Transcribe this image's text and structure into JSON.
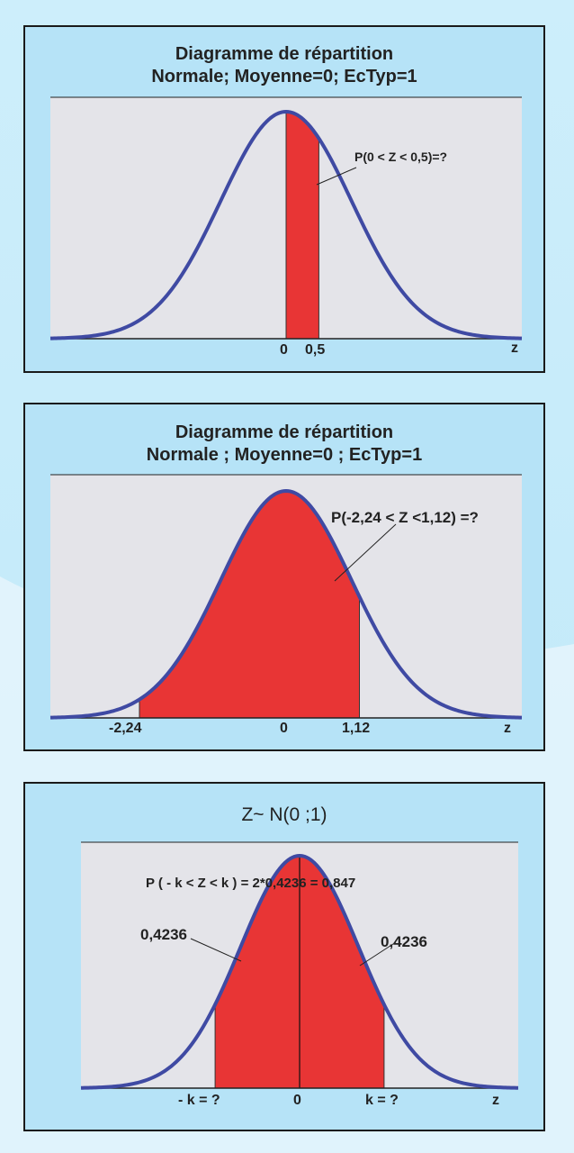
{
  "colors": {
    "panel_bg": "#b6e3f7",
    "plot_bg": "#e4e4e9",
    "curve": "#3f4aa3",
    "fill": "#e83535"
  },
  "charts": [
    {
      "title_line1": "Diagramme de répartition",
      "title_line2": "Normale; Moyenne=0; EcTyp=1",
      "annotation": "P(0 < Z < 0,5)=?",
      "x_labels": [
        "0",
        "0,5"
      ],
      "axis_label": "z"
    },
    {
      "title_line1": "Diagramme de répartition",
      "title_line2": "Normale ; Moyenne=0 ; EcTyp=1",
      "annotation": "P(-2,24 < Z <1,12) =?",
      "x_labels": [
        "-2,24",
        "0",
        "1,12"
      ],
      "axis_label": "z"
    },
    {
      "title_line1": "Z~ N(0 ;1)",
      "annotation": "P ( - k < Z < k ) = 2*0,4236 = 0,847",
      "left_area": "0,4236",
      "right_area": "0,4236",
      "x_labels": [
        "- k = ?",
        "0",
        "k = ?"
      ],
      "axis_label": "z"
    }
  ],
  "chart_data": [
    {
      "type": "area",
      "distribution": "normal",
      "mean": 0,
      "sd": 1,
      "xlim": [
        -3.6,
        3.6
      ],
      "shaded_interval": [
        0,
        0.5
      ]
    },
    {
      "type": "area",
      "distribution": "normal",
      "mean": 0,
      "sd": 1,
      "xlim": [
        -3.6,
        3.6
      ],
      "shaded_interval": [
        -2.24,
        1.12
      ]
    },
    {
      "type": "area",
      "distribution": "normal",
      "mean": 0,
      "sd": 1,
      "xlim": [
        -3.7,
        3.7
      ],
      "shaded_interval": [
        -1.43,
        1.43
      ],
      "area_each_side": 0.4236
    }
  ]
}
